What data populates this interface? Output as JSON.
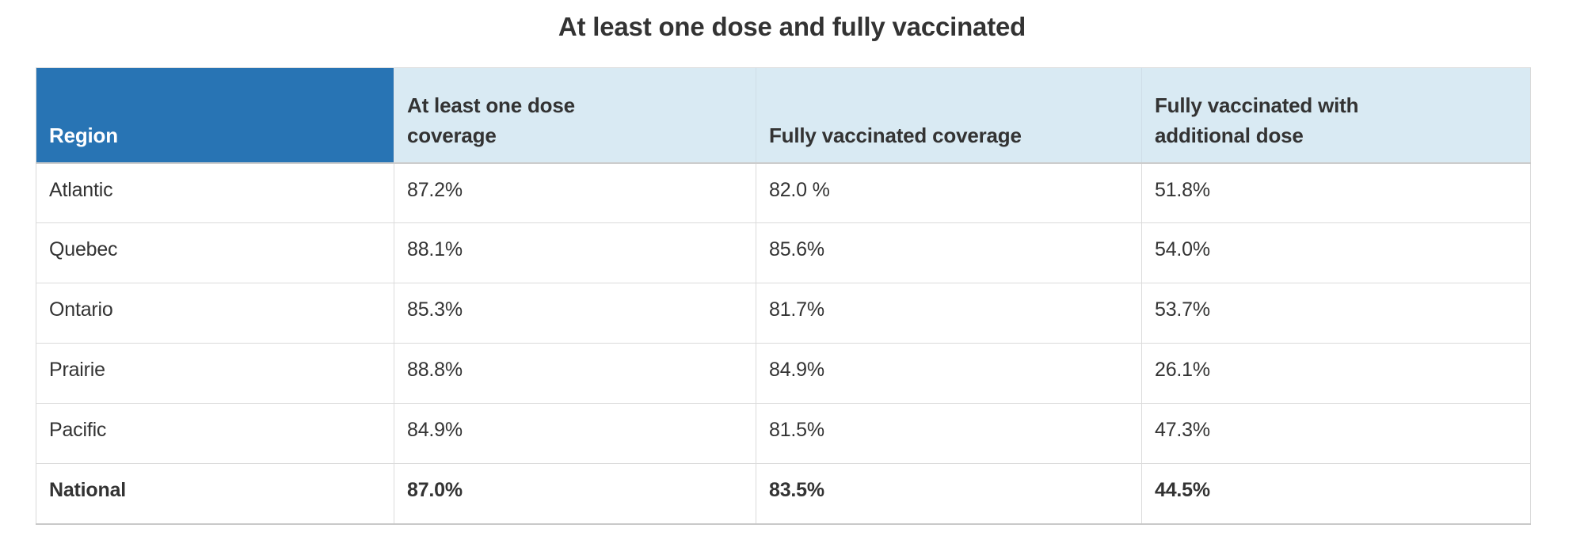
{
  "title": "At least one dose and fully vaccinated",
  "colors": {
    "header_blue": "#2874b4",
    "header_light_blue": "#d9eaf3",
    "text_dark": "#333333",
    "header_region_text": "#ffffff",
    "row_border": "#dbdbdb"
  },
  "chart_data": {
    "type": "table",
    "title": "At least one dose and fully vaccinated",
    "columns": [
      "Region",
      "At least one dose coverage",
      "Fully vaccinated coverage",
      "Fully vaccinated with additional dose"
    ],
    "rows": [
      [
        "Atlantic",
        "87.2%",
        "82.0 %",
        "51.8%"
      ],
      [
        "Quebec",
        "88.1%",
        "85.6%",
        "54.0%"
      ],
      [
        "Ontario",
        "85.3%",
        "81.7%",
        "53.7%"
      ],
      [
        "Prairie",
        "88.8%",
        "84.9%",
        "26.1%"
      ],
      [
        "Pacific",
        "84.9%",
        "81.5%",
        "47.3%"
      ],
      [
        "National",
        "87.0%",
        "83.5%",
        "44.5%"
      ]
    ],
    "values_numeric": {
      "at_least_one_dose_pct": [
        87.2,
        88.1,
        85.3,
        88.8,
        84.9,
        87.0
      ],
      "fully_vaccinated_pct": [
        82.0,
        85.6,
        81.7,
        84.9,
        81.5,
        83.5
      ],
      "additional_dose_pct": [
        51.8,
        54.0,
        53.7,
        26.1,
        47.3,
        44.5
      ]
    }
  }
}
